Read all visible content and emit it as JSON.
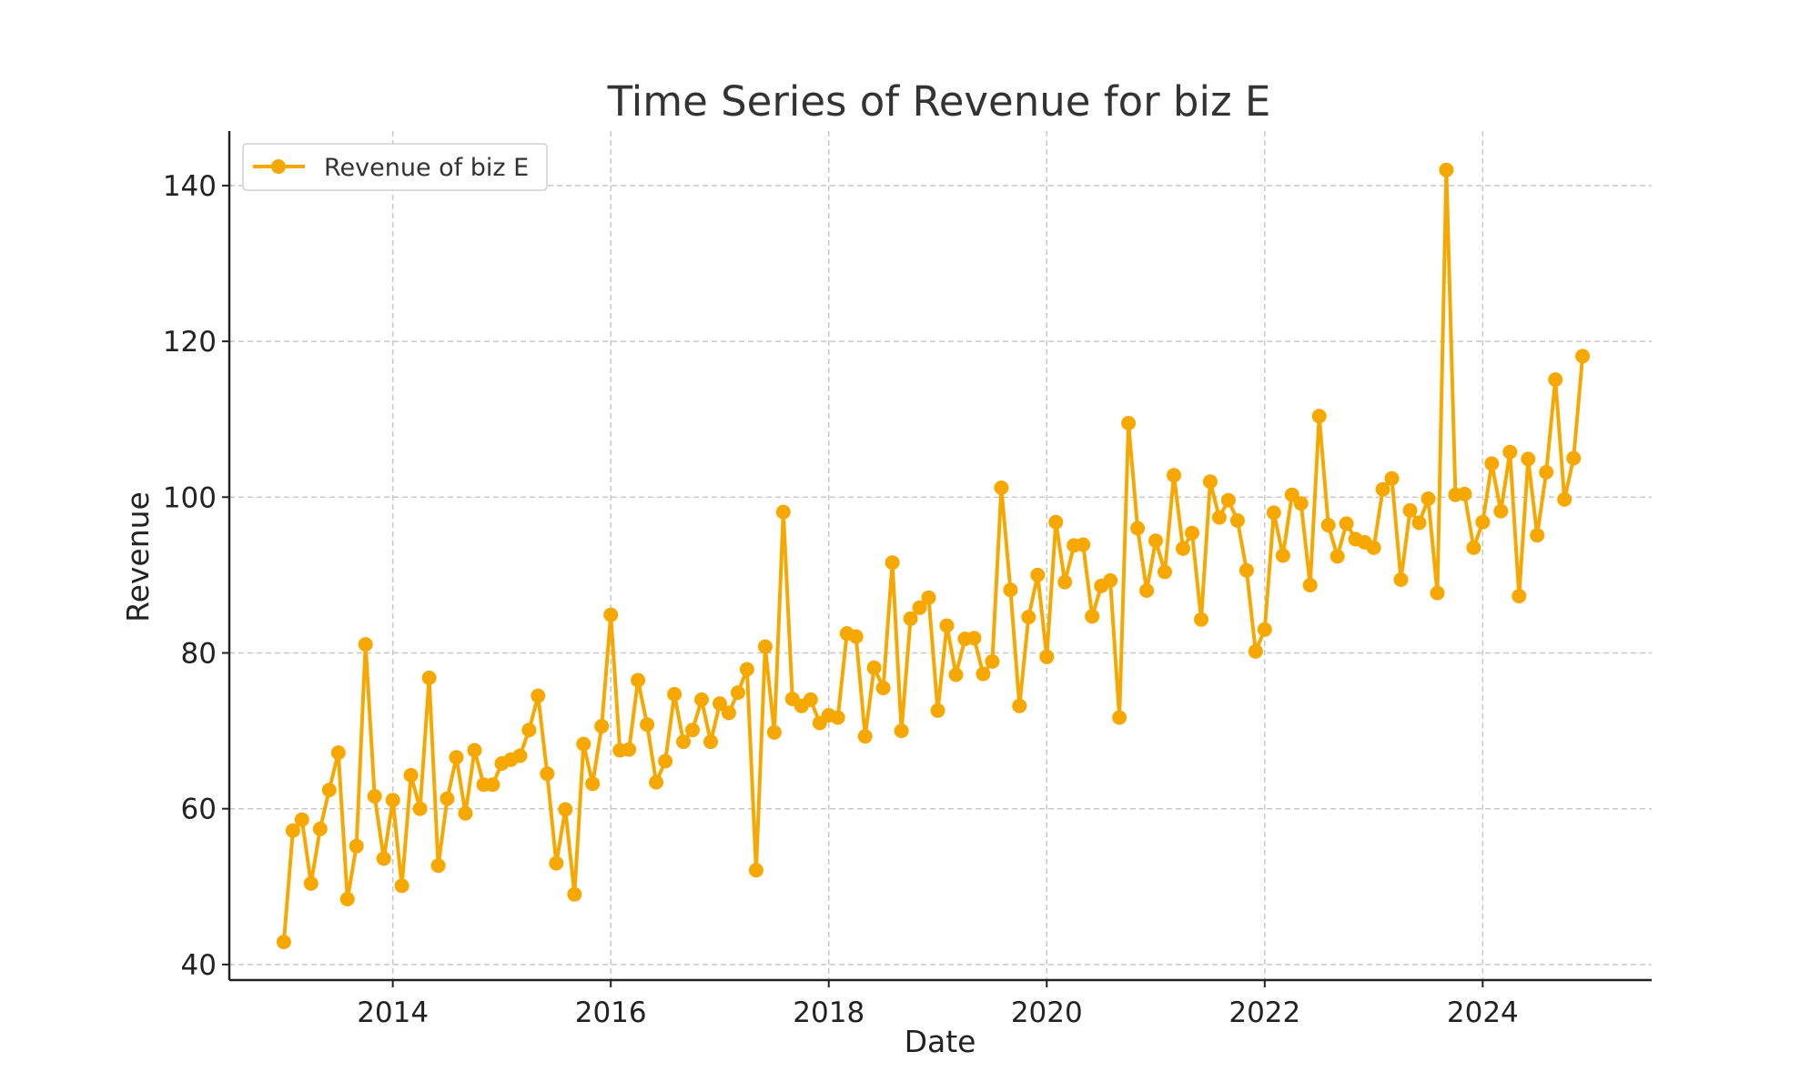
{
  "chart_data": {
    "type": "line",
    "title": "Time Series of Revenue for biz E",
    "xlabel": "Date",
    "ylabel": "Revenue",
    "xlim": [
      2012.5,
      2025.55
    ],
    "ylim": [
      38,
      147
    ],
    "xticks": [
      2014,
      2016,
      2018,
      2020,
      2022,
      2024
    ],
    "xtick_labels": [
      "2014",
      "2016",
      "2018",
      "2020",
      "2022",
      "2024"
    ],
    "yticks": [
      40,
      60,
      80,
      100,
      120,
      140
    ],
    "ytick_labels": [
      "40",
      "60",
      "80",
      "100",
      "120",
      "140"
    ],
    "grid": true,
    "legend_position": "top-left",
    "x_start": "2013-01",
    "x_frequency": "monthly",
    "series": [
      {
        "name": "Revenue of biz E",
        "color": "#f7a800",
        "marker": "circle",
        "values": [
          42.9,
          57.2,
          58.6,
          50.4,
          57.4,
          62.4,
          67.2,
          48.4,
          55.2,
          81.1,
          61.6,
          53.6,
          61.1,
          50.1,
          64.3,
          60.0,
          76.8,
          52.7,
          61.3,
          66.6,
          59.4,
          67.5,
          63.1,
          63.1,
          65.8,
          66.3,
          66.8,
          70.1,
          74.5,
          64.5,
          53.0,
          59.9,
          49.0,
          68.3,
          63.2,
          70.6,
          84.9,
          67.5,
          67.6,
          76.5,
          70.8,
          63.4,
          66.1,
          74.7,
          68.6,
          70.1,
          74.0,
          68.6,
          73.5,
          72.3,
          74.9,
          77.9,
          52.1,
          80.8,
          69.8,
          98.1,
          74.1,
          73.2,
          74.0,
          71.0,
          72.0,
          71.7,
          82.5,
          82.1,
          69.3,
          78.1,
          75.5,
          91.6,
          70.0,
          84.4,
          85.8,
          87.1,
          72.6,
          83.5,
          77.2,
          81.8,
          81.9,
          77.3,
          78.9,
          101.2,
          88.1,
          73.2,
          84.6,
          90.0,
          79.5,
          96.8,
          89.1,
          93.8,
          93.9,
          84.7,
          88.6,
          89.3,
          71.7,
          109.5,
          96.0,
          88.0,
          94.4,
          90.4,
          102.8,
          93.4,
          95.4,
          84.3,
          102.0,
          97.4,
          99.6,
          97.0,
          90.6,
          80.2,
          83.0,
          98.0,
          92.5,
          100.3,
          99.2,
          88.7,
          110.4,
          96.4,
          92.4,
          96.6,
          94.6,
          94.2,
          93.5,
          101.0,
          102.4,
          89.4,
          98.3,
          96.7,
          99.8,
          87.7,
          142.0,
          100.3,
          100.4,
          93.5,
          96.8,
          104.3,
          98.2,
          105.8,
          87.3,
          104.9,
          95.1,
          103.2,
          115.1,
          99.7,
          105.0,
          118.1
        ]
      }
    ]
  }
}
